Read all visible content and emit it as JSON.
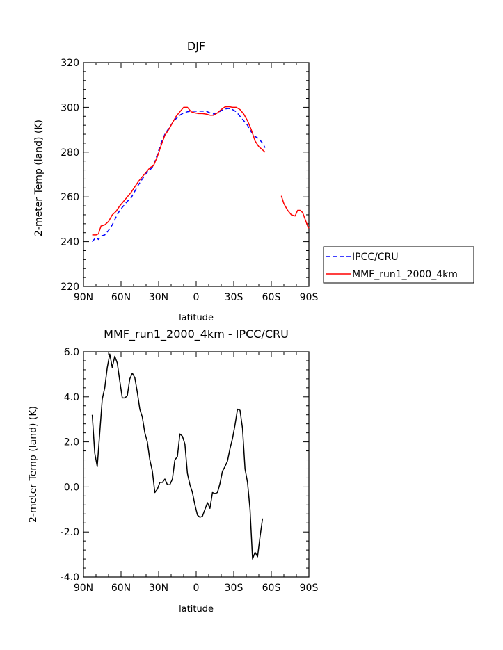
{
  "chart_data": [
    {
      "type": "line",
      "title": "DJF",
      "xlabel": "latitude",
      "ylabel": "2-meter Temp (land) (K)",
      "xlim": [
        90,
        -90
      ],
      "ylim": [
        220,
        320
      ],
      "x_ticks": [
        90,
        60,
        30,
        0,
        -30,
        -60,
        -90
      ],
      "x_tick_labels": [
        "90N",
        "60N",
        "30N",
        "0",
        "30S",
        "60S",
        "90S"
      ],
      "y_ticks": [
        220,
        240,
        260,
        280,
        300,
        320
      ],
      "y_tick_labels": [
        "220",
        "240",
        "260",
        "280",
        "300",
        "320"
      ],
      "grid": false,
      "legend_position": "right",
      "series": [
        {
          "name": "IPCC/CRU",
          "color": "#0000ff",
          "dash": "dashed",
          "segments": [
            [
              [
                83,
                240
              ],
              [
                80,
                242
              ],
              [
                78,
                241
              ],
              [
                76,
                242.5
              ],
              [
                73,
                243
              ],
              [
                70,
                245
              ],
              [
                67,
                247.5
              ],
              [
                64,
                251
              ],
              [
                61,
                254
              ],
              [
                58,
                256
              ],
              [
                55,
                258
              ],
              [
                52,
                259.5
              ],
              [
                49,
                262.5
              ],
              [
                46,
                265.5
              ],
              [
                43,
                268
              ],
              [
                40,
                270.5
              ],
              [
                37,
                272
              ],
              [
                34,
                274
              ],
              [
                31,
                279
              ],
              [
                28,
                284
              ],
              [
                25,
                288
              ],
              [
                22,
                290.5
              ],
              [
                19,
                293
              ],
              [
                16,
                295
              ],
              [
                13,
                296.5
              ],
              [
                10,
                297.5
              ],
              [
                7,
                298
              ],
              [
                4,
                298.3
              ],
              [
                1,
                298.3
              ],
              [
                -2,
                298.3
              ],
              [
                -5,
                298.3
              ],
              [
                -8,
                298.3
              ],
              [
                -11,
                297.5
              ],
              [
                -14,
                297
              ],
              [
                -17,
                297.5
              ],
              [
                -20,
                298.5
              ],
              [
                -23,
                299.3
              ],
              [
                -26,
                299.5
              ],
              [
                -29,
                299
              ],
              [
                -32,
                298
              ],
              [
                -35,
                296
              ],
              [
                -38,
                294
              ],
              [
                -41,
                292
              ],
              [
                -44,
                289
              ],
              [
                -47,
                287
              ],
              [
                -50,
                286
              ],
              [
                -53,
                284
              ],
              [
                -55,
                282
              ]
            ]
          ]
        },
        {
          "name": "MMF_run1_2000_4km",
          "color": "#ff0000",
          "dash": "solid",
          "segments": [
            [
              [
                83,
                243
              ],
              [
                80,
                243
              ],
              [
                78,
                243.5
              ],
              [
                76,
                247
              ],
              [
                73,
                247.5
              ],
              [
                70,
                249
              ],
              [
                67,
                252
              ],
              [
                64,
                253.5
              ],
              [
                61,
                256
              ],
              [
                58,
                258
              ],
              [
                55,
                260
              ],
              [
                52,
                262
              ],
              [
                49,
                264.5
              ],
              [
                46,
                267
              ],
              [
                43,
                269
              ],
              [
                40,
                271
              ],
              [
                37,
                273
              ],
              [
                34,
                274
              ],
              [
                31,
                278
              ],
              [
                28,
                283
              ],
              [
                25,
                287.5
              ],
              [
                22,
                290
              ],
              [
                19,
                293
              ],
              [
                16,
                296
              ],
              [
                13,
                298
              ],
              [
                10,
                300
              ],
              [
                7,
                300
              ],
              [
                4,
                298
              ],
              [
                1,
                297.5
              ],
              [
                -2,
                297.2
              ],
              [
                -5,
                297.2
              ],
              [
                -8,
                297
              ],
              [
                -11,
                296.5
              ],
              [
                -14,
                296.5
              ],
              [
                -17,
                297.5
              ],
              [
                -20,
                299
              ],
              [
                -23,
                300.2
              ],
              [
                -26,
                300.3
              ],
              [
                -29,
                300
              ],
              [
                -32,
                300
              ],
              [
                -35,
                299
              ],
              [
                -38,
                297
              ],
              [
                -41,
                294
              ],
              [
                -44,
                290
              ],
              [
                -47,
                285
              ],
              [
                -50,
                282.5
              ],
              [
                -53,
                281
              ],
              [
                -55,
                280
              ]
            ],
            [
              [
                -68,
                260.5
              ],
              [
                -70,
                257
              ],
              [
                -73,
                254
              ],
              [
                -76,
                252
              ],
              [
                -79,
                251.5
              ],
              [
                -81,
                254
              ],
              [
                -83,
                254
              ],
              [
                -85,
                253
              ],
              [
                -87,
                250
              ],
              [
                -89,
                247
              ],
              [
                -90,
                246
              ]
            ]
          ]
        }
      ]
    },
    {
      "type": "line",
      "title": "MMF_run1_2000_4km - IPCC/CRU",
      "xlabel": "latitude",
      "ylabel": "2-meter Temp (land) (K)",
      "xlim": [
        90,
        -90
      ],
      "ylim": [
        -4.0,
        6.0
      ],
      "x_ticks": [
        90,
        60,
        30,
        0,
        -30,
        -60,
        -90
      ],
      "x_tick_labels": [
        "90N",
        "60N",
        "30N",
        "0",
        "30S",
        "60S",
        "90S"
      ],
      "y_ticks": [
        -4,
        -2,
        0,
        2,
        4,
        6
      ],
      "y_tick_labels": [
        "-4.0",
        "-2.0",
        "0.0",
        "2.0",
        "4.0",
        "6.0"
      ],
      "grid": false,
      "series": [
        {
          "color": "#000000",
          "dash": "solid",
          "segments": [
            [
              [
                83,
                3.2
              ],
              [
                81,
                1.5
              ],
              [
                79,
                0.9
              ],
              [
                77,
                2.4
              ],
              [
                75,
                3.9
              ],
              [
                73,
                4.4
              ],
              [
                71,
                5.3
              ],
              [
                69,
                5.9
              ],
              [
                67,
                5.3
              ],
              [
                65,
                5.8
              ],
              [
                63,
                5.5
              ],
              [
                61,
                4.7
              ],
              [
                59,
                3.95
              ],
              [
                57,
                3.95
              ],
              [
                55,
                4.05
              ],
              [
                53,
                4.8
              ],
              [
                51,
                5.05
              ],
              [
                49,
                4.85
              ],
              [
                47,
                4.2
              ],
              [
                45,
                3.45
              ],
              [
                43,
                3.1
              ],
              [
                41,
                2.4
              ],
              [
                39,
                2.0
              ],
              [
                37,
                1.2
              ],
              [
                35,
                0.7
              ],
              [
                33,
                -0.25
              ],
              [
                31,
                -0.1
              ],
              [
                29,
                0.2
              ],
              [
                27,
                0.2
              ],
              [
                25,
                0.35
              ],
              [
                23,
                0.1
              ],
              [
                21,
                0.1
              ],
              [
                19,
                0.35
              ],
              [
                17,
                1.2
              ],
              [
                15,
                1.35
              ],
              [
                13,
                2.35
              ],
              [
                11,
                2.25
              ],
              [
                9,
                1.9
              ],
              [
                7,
                0.6
              ],
              [
                5,
                0.1
              ],
              [
                3,
                -0.25
              ],
              [
                1,
                -0.8
              ],
              [
                -1,
                -1.25
              ],
              [
                -3,
                -1.35
              ],
              [
                -5,
                -1.3
              ],
              [
                -7,
                -1.0
              ],
              [
                -9,
                -0.7
              ],
              [
                -11,
                -0.95
              ],
              [
                -13,
                -0.25
              ],
              [
                -15,
                -0.3
              ],
              [
                -17,
                -0.25
              ],
              [
                -19,
                0.15
              ],
              [
                -21,
                0.7
              ],
              [
                -23,
                0.9
              ],
              [
                -25,
                1.15
              ],
              [
                -27,
                1.7
              ],
              [
                -29,
                2.15
              ],
              [
                -31,
                2.75
              ],
              [
                -33,
                3.45
              ],
              [
                -35,
                3.4
              ],
              [
                -37,
                2.6
              ],
              [
                -39,
                0.8
              ],
              [
                -41,
                0.2
              ],
              [
                -43,
                -1.0
              ],
              [
                -45,
                -3.2
              ],
              [
                -47,
                -2.9
              ],
              [
                -49,
                -3.1
              ],
              [
                -51,
                -2.2
              ],
              [
                -53,
                -1.4
              ]
            ]
          ]
        }
      ]
    }
  ]
}
